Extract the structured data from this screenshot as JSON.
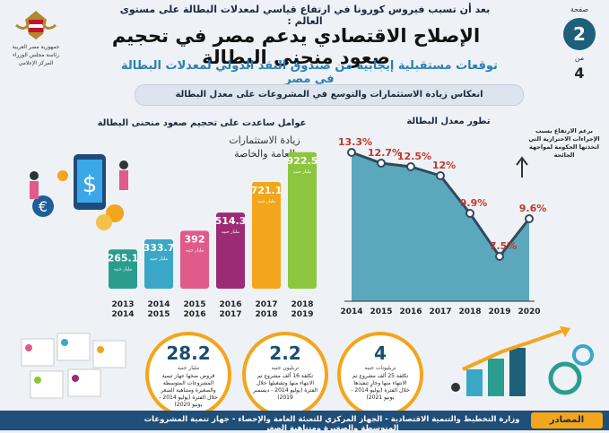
{
  "header": {
    "top_line": "بعد أن تسبب فيروس كورونا في ارتفاع قياسي لمعدلات البطالة على مستوى العالم :",
    "title": "الإصلاح الاقتصادي يدعم مصر في تحجيم صعود منحنى البطالة",
    "subtitle": "توقعات مستقبلية إيجابية من صندوق النقد الدولي لمعدلات البطالة في مصر",
    "page_word": "صفحة",
    "page_current": "2",
    "page_of": "من",
    "page_total": "4",
    "logo_text": "جمهورية مصر العربية رئاسة مجلس الوزراء المركز الإعلامي"
  },
  "banner": "انعكاس زيادة الاستثمارات والتوسع في المشروعات على معدل البطالة",
  "left_section": {
    "title": "عوامل ساعدت على تحجيم صعود منحنى البطالة",
    "caption_line1": "زيادة الاستثمارات",
    "caption_line2": "العامة والخاصة"
  },
  "right_section": {
    "title": "تطور معدل البطالة",
    "note": "برغم الارتفاع بسبب الإجراءات الاحترازية التي اتخذتها الحكومة لمواجهة الجائحة"
  },
  "chart_data": [
    {
      "type": "bar",
      "title": "عوامل ساعدت على تحجيم صعود منحنى البطالة",
      "categories": [
        "2013 2014",
        "2014 2015",
        "2015 2016",
        "2016 2017",
        "2017 2018",
        "2018 2019"
      ],
      "values": [
        265.1,
        333.7,
        392,
        514.3,
        721.1,
        922.5
      ],
      "value_labels": [
        "265.1",
        "333.7",
        "392",
        "514.3",
        "721.1",
        "922.5"
      ],
      "unit": "مليار جنيه",
      "colors": [
        "#2a9d8f",
        "#3aa7c7",
        "#e05a8a",
        "#9b2b74",
        "#f3a51b",
        "#8cc63e"
      ]
    },
    {
      "type": "line",
      "title": "تطور معدل البطالة",
      "categories": [
        "2014",
        "2015",
        "2016",
        "2017",
        "2018",
        "2019",
        "2020"
      ],
      "values": [
        13.3,
        12.7,
        12.5,
        12,
        9.9,
        7.5,
        9.6
      ],
      "value_labels": [
        "13.3",
        "12.7",
        "12.5",
        "12",
        "9.9",
        "7.5",
        "9.6"
      ],
      "unit": "%",
      "line_color": "#2f4a5f",
      "area_color": "#2a8fa8"
    }
  ],
  "stats": [
    {
      "number": "28.2",
      "unit": "مليار جنيه",
      "desc": "قروض ضخها جهاز تنمية المشروعات المتوسطة والصغيرة ومتناهية الصغر خلال الفترة (يوليو 2014 - يونيو 2020)"
    },
    {
      "number": "2.2",
      "unit": "تريليون جنيه",
      "desc": "تكلفة 16 ألف مشروع تم الانتهاء منها وتشغيلها خلال الفترة (يوليو 2014 - ديسمبر 2019)"
    },
    {
      "number": "4",
      "unit": "تريليونات جنيه",
      "desc": "تكلفة 25 ألف مشروع تم الانتهاء منها وجارٍ تنفيذها خلال الفترة (يوليو 2014 - يونيو 2021)"
    }
  ],
  "footer": {
    "label": "المصادر",
    "text": "وزارة التخطيط والتنمية الاقتصادية - الجهاز المركزي للتعبئة العامة والإحصاء - جهاز تنمية المشروعات المتوسطة والصغيرة ومتناهية الصغر"
  }
}
